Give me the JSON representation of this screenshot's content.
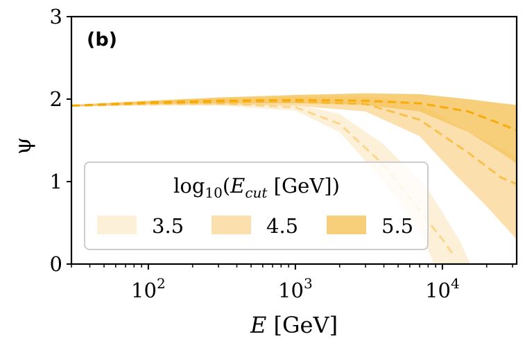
{
  "chart_data": {
    "type": "area",
    "panel_label": "(b)",
    "xlabel": "E [GeV]",
    "ylabel": "ψ",
    "xscale": "log",
    "xlim": [
      30,
      32000
    ],
    "ylim": [
      0,
      3
    ],
    "x_ticks": [
      {
        "value": 100,
        "base": "10",
        "exp": "2"
      },
      {
        "value": 1000,
        "base": "10",
        "exp": "3"
      },
      {
        "value": 10000,
        "base": "10",
        "exp": "4"
      }
    ],
    "y_ticks": [
      "0",
      "1",
      "2",
      "3"
    ],
    "legend": {
      "title": "log10(Ecut [GeV])",
      "placement": "lower-left"
    },
    "series": [
      {
        "name": "3.5",
        "color": "#fbe3b9",
        "median": [
          [
            30,
            1.92
          ],
          [
            100,
            1.94
          ],
          [
            300,
            1.95
          ],
          [
            1000,
            1.9
          ],
          [
            2000,
            1.7
          ],
          [
            4000,
            1.2
          ],
          [
            7000,
            0.65
          ],
          [
            10000,
            0.3
          ],
          [
            12000,
            0.1
          ]
        ],
        "upper": [
          [
            30,
            1.93
          ],
          [
            100,
            1.96
          ],
          [
            300,
            1.98
          ],
          [
            1000,
            1.94
          ],
          [
            2000,
            1.82
          ],
          [
            4000,
            1.45
          ],
          [
            8000,
            0.9
          ],
          [
            13000,
            0.3
          ],
          [
            15500,
            0.0
          ]
        ],
        "lower": [
          [
            30,
            1.91
          ],
          [
            100,
            1.92
          ],
          [
            300,
            1.92
          ],
          [
            1000,
            1.86
          ],
          [
            2000,
            1.6
          ],
          [
            4000,
            1.0
          ],
          [
            7000,
            0.4
          ],
          [
            8800,
            0.0
          ]
        ]
      },
      {
        "name": "4.5",
        "color": "#f9d593",
        "median": [
          [
            30,
            1.92
          ],
          [
            100,
            1.95
          ],
          [
            300,
            1.97
          ],
          [
            1000,
            1.97
          ],
          [
            3000,
            1.94
          ],
          [
            7000,
            1.75
          ],
          [
            15000,
            1.35
          ],
          [
            25000,
            1.05
          ],
          [
            32000,
            0.97
          ]
        ],
        "upper": [
          [
            30,
            1.93
          ],
          [
            100,
            1.97
          ],
          [
            300,
            2.01
          ],
          [
            1000,
            2.03
          ],
          [
            3000,
            2.03
          ],
          [
            7000,
            1.95
          ],
          [
            15000,
            1.6
          ],
          [
            25000,
            1.4
          ],
          [
            32000,
            1.3
          ]
        ],
        "lower": [
          [
            30,
            1.91
          ],
          [
            100,
            1.93
          ],
          [
            300,
            1.93
          ],
          [
            1000,
            1.92
          ],
          [
            3000,
            1.85
          ],
          [
            7000,
            1.55
          ],
          [
            12000,
            1.1
          ],
          [
            20000,
            0.7
          ],
          [
            32000,
            0.3
          ]
        ]
      },
      {
        "name": "5.5",
        "color": "#f6c663",
        "median": [
          [
            30,
            1.92
          ],
          [
            100,
            1.96
          ],
          [
            300,
            1.98
          ],
          [
            1000,
            1.99
          ],
          [
            3000,
            1.98
          ],
          [
            7000,
            1.95
          ],
          [
            15000,
            1.85
          ],
          [
            25000,
            1.7
          ],
          [
            32000,
            1.62
          ]
        ],
        "upper": [
          [
            30,
            1.93
          ],
          [
            100,
            1.98
          ],
          [
            300,
            2.02
          ],
          [
            1000,
            2.05
          ],
          [
            3000,
            2.07
          ],
          [
            7000,
            2.06
          ],
          [
            15000,
            2.0
          ],
          [
            25000,
            1.95
          ],
          [
            32000,
            1.93
          ]
        ],
        "lower": [
          [
            30,
            1.91
          ],
          [
            100,
            1.94
          ],
          [
            300,
            1.95
          ],
          [
            1000,
            1.95
          ],
          [
            3000,
            1.93
          ],
          [
            7000,
            1.85
          ],
          [
            15000,
            1.6
          ],
          [
            25000,
            1.35
          ],
          [
            32000,
            1.22
          ]
        ]
      }
    ],
    "line_color": "#f6a800"
  }
}
